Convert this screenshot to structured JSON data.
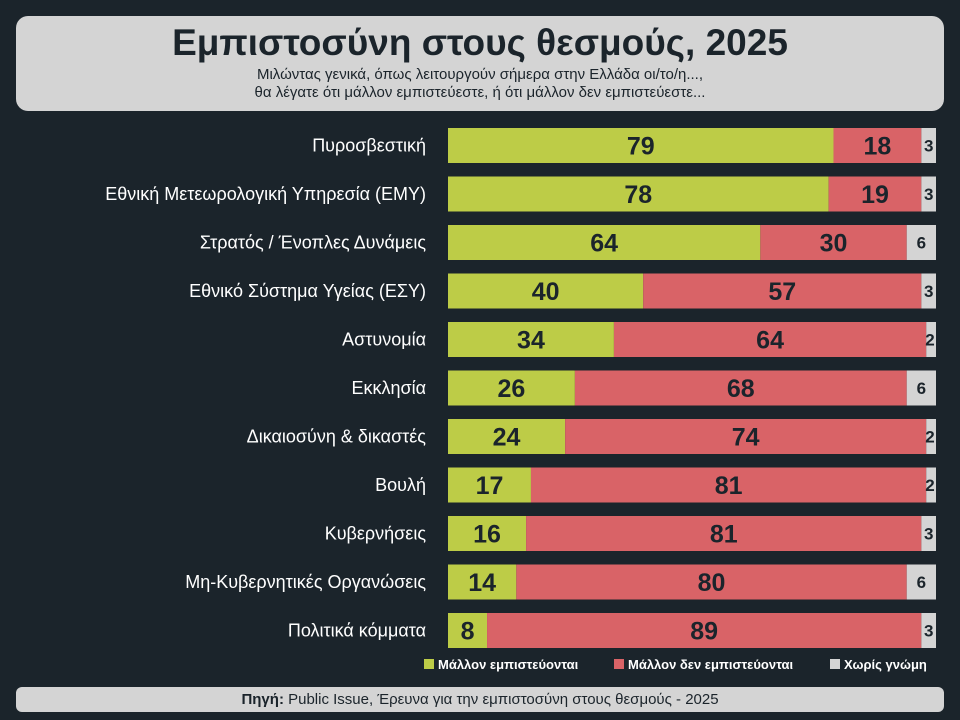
{
  "header": {
    "title": "Εμπιστοσύνη στους θεσμούς, 2025",
    "subtitle_line1": "Μιλώντας γενικά, όπως λειτουργούν σήμερα στην Ελλάδα οι/το/η...,",
    "subtitle_line2": "θα λέγατε ότι μάλλον εμπιστεύεστε, ή ότι μάλλον δεν εμπιστεύεστε..."
  },
  "footer": {
    "source_label": "Πηγή:",
    "source_text": " Public Issue, Έρευνα για την εμπιστοσύνη στους θεσμούς - 2025"
  },
  "colors": {
    "trust": "#bdcc47",
    "distrust": "#d96367",
    "no_opinion": "#d4d4d4"
  },
  "chart_data": {
    "type": "bar",
    "orientation": "horizontal",
    "stacked": true,
    "categories": [
      "Πυροσβεστική",
      "Εθνική Μετεωρολογική Υπηρεσία (ΕΜΥ)",
      "Στρατός / Ένοπλες Δυνάμεις",
      "Εθνικό Σύστημα Υγείας (ΕΣΥ)",
      "Αστυνομία",
      "Εκκλησία",
      "Δικαιοσύνη & δικαστές",
      "Βουλή",
      "Κυβερνήσεις",
      "Μη-Κυβερνητικές Οργανώσεις",
      "Πολιτικά κόμματα"
    ],
    "series": [
      {
        "name": "Μάλλον εμπιστεύονται",
        "values": [
          79,
          78,
          64,
          40,
          34,
          26,
          24,
          17,
          16,
          14,
          8
        ]
      },
      {
        "name": "Μάλλον δεν εμπιστεύονται",
        "values": [
          18,
          19,
          30,
          57,
          64,
          68,
          74,
          81,
          81,
          80,
          89
        ]
      },
      {
        "name": "Χωρίς γνώμη",
        "values": [
          3,
          3,
          6,
          3,
          2,
          6,
          2,
          2,
          3,
          6,
          3
        ]
      }
    ],
    "xlim": [
      0,
      100
    ],
    "legend_position": "bottom-right",
    "grid": false
  }
}
